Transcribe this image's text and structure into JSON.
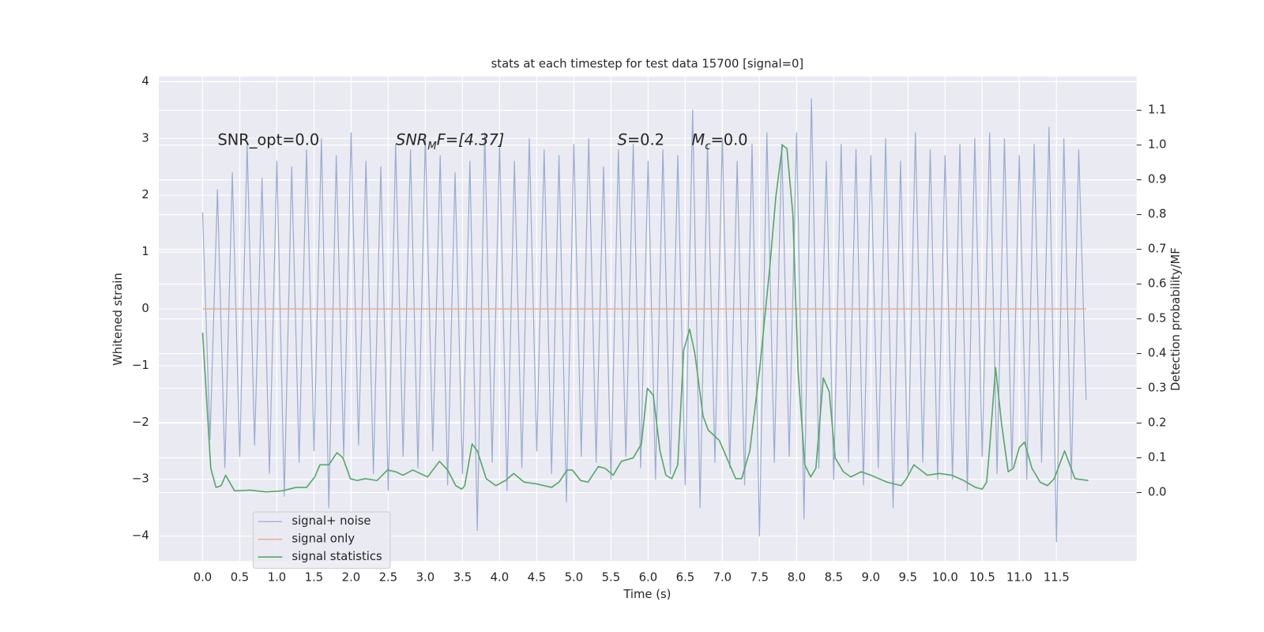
{
  "chart_data": {
    "type": "line",
    "title": "stats at each timestep for test data 15700 [signal=0]",
    "x_label": "Time (s)",
    "y_label": "Whitened strain",
    "y2_label": "Detection probability/MF",
    "grid": true,
    "legend_position": "lower left",
    "xlim": [
      -0.59,
      12.58
    ],
    "ylim": [
      -4.44,
      4.09
    ],
    "y2lim": [
      -0.197,
      1.197
    ],
    "xticks": [
      {
        "value": 0,
        "label": "0.0"
      },
      0.5,
      {
        "value": 1,
        "label": "1.0"
      },
      1.5,
      {
        "value": 2,
        "label": "2.0"
      },
      2.5,
      {
        "value": 3,
        "label": "3.0"
      },
      3.5,
      {
        "value": 4,
        "label": "4.0"
      },
      4.5,
      {
        "value": 5,
        "label": "5.0"
      },
      5.5,
      {
        "value": 6,
        "label": "6.0"
      },
      6.5,
      {
        "value": 7,
        "label": "7.0"
      },
      7.5,
      {
        "value": 8,
        "label": "8.0"
      },
      8.5,
      {
        "value": 9,
        "label": "9.0"
      },
      9.5,
      {
        "value": 10,
        "label": "10.0"
      },
      10.5,
      {
        "value": 11,
        "label": "11.0"
      },
      11.5
    ],
    "yticks": [
      {
        "value": -4,
        "label": "−4"
      },
      {
        "value": -3,
        "label": "−3"
      },
      {
        "value": -2,
        "label": "−2"
      },
      {
        "value": -1,
        "label": "−1"
      },
      0,
      1,
      2,
      3,
      4
    ],
    "y2ticks": [
      {
        "value": 0,
        "label": "0.0"
      },
      0.1,
      0.2,
      0.3,
      0.4,
      0.5,
      0.6,
      0.7,
      0.8,
      0.9,
      {
        "value": 1,
        "label": "1.0"
      },
      1.1
    ],
    "annotations": [
      {
        "text": "SNR_opt=0.0"
      },
      {
        "text": "SNR",
        "sub": "M",
        "after": "F=[4.37]"
      },
      {
        "text": "S",
        "after": "=0.2"
      },
      {
        "text": "M",
        "sub": "c",
        "after": "=0.0"
      }
    ],
    "series": [
      {
        "name": "signal+ noise",
        "color": "#9aacd2",
        "width": 1.2,
        "axis": "y",
        "x": [
          0.0,
          0.1,
          0.2,
          0.3,
          0.4,
          0.5,
          0.6,
          0.7,
          0.8,
          0.9,
          1.0,
          1.1,
          1.2,
          1.3,
          1.4,
          1.5,
          1.6,
          1.7,
          1.8,
          1.9,
          2.0,
          2.1,
          2.2,
          2.3,
          2.4,
          2.5,
          2.6,
          2.7,
          2.8,
          2.9,
          3.0,
          3.1,
          3.2,
          3.3,
          3.4,
          3.5,
          3.6,
          3.7,
          3.8,
          3.9,
          4.0,
          4.1,
          4.2,
          4.3,
          4.4,
          4.5,
          4.6,
          4.7,
          4.8,
          4.9,
          5.0,
          5.1,
          5.2,
          5.3,
          5.4,
          5.5,
          5.6,
          5.7,
          5.8,
          5.9,
          6.0,
          6.1,
          6.2,
          6.3,
          6.4,
          6.5,
          6.6,
          6.7,
          6.8,
          6.9,
          7.0,
          7.1,
          7.2,
          7.3,
          7.4,
          7.5,
          7.6,
          7.7,
          7.8,
          7.9,
          8.0,
          8.1,
          8.2,
          8.3,
          8.4,
          8.5,
          8.6,
          8.7,
          8.8,
          8.9,
          9.0,
          9.1,
          9.2,
          9.3,
          9.4,
          9.5,
          9.6,
          9.7,
          9.8,
          9.9,
          10.0,
          10.1,
          10.2,
          10.3,
          10.4,
          10.5,
          10.6,
          10.7,
          10.8,
          10.9,
          11.0,
          11.1,
          11.2,
          11.3,
          11.4,
          11.5,
          11.6,
          11.7,
          11.8,
          11.9
        ],
        "values": [
          1.7,
          -2.3,
          2.1,
          -2.8,
          2.4,
          -2.6,
          2.9,
          -2.4,
          2.3,
          -2.9,
          2.6,
          -3.3,
          2.5,
          -2.7,
          2.8,
          -2.5,
          3.0,
          -3.5,
          2.7,
          -2.6,
          3.1,
          -2.4,
          2.6,
          -2.9,
          2.5,
          -3.2,
          2.9,
          -2.6,
          2.8,
          -2.8,
          3.0,
          -2.5,
          2.7,
          -3.1,
          2.4,
          -2.9,
          2.6,
          -3.9,
          3.1,
          -2.7,
          2.9,
          -3.2,
          2.6,
          -2.8,
          3.0,
          -2.5,
          2.8,
          -2.9,
          2.7,
          -3.4,
          2.9,
          -2.6,
          3.0,
          -2.7,
          2.5,
          -3.0,
          2.8,
          -2.6,
          2.9,
          -2.8,
          2.6,
          -3.0,
          2.8,
          -2.9,
          2.7,
          -3.1,
          3.5,
          -3.5,
          2.9,
          -2.7,
          3.0,
          -2.8,
          2.6,
          -3.1,
          2.9,
          -4.0,
          3.1,
          -2.7,
          2.9,
          -2.6,
          3.1,
          -3.7,
          3.7,
          -2.8,
          2.6,
          -3.0,
          2.9,
          -2.7,
          2.8,
          -3.1,
          2.7,
          -2.8,
          3.0,
          -3.5,
          2.6,
          -2.9,
          3.1,
          -2.7,
          2.8,
          -3.0,
          2.7,
          -3.0,
          2.9,
          -3.2,
          3.0,
          -2.6,
          3.1,
          -2.9,
          3.0,
          -2.8,
          2.7,
          -3.0,
          2.9,
          -2.7,
          3.2,
          -4.1,
          3.0,
          -3.0,
          2.8,
          -1.6
        ]
      },
      {
        "name": "signal only",
        "color": "#e8ad90",
        "width": 1.5,
        "axis": "y",
        "x": [
          0.0,
          11.9
        ],
        "values": [
          0,
          0
        ]
      },
      {
        "name": "signal statistics",
        "color": "#55a868",
        "width": 1.6,
        "axis": "y2",
        "x": [
          0.0,
          0.11,
          0.18,
          0.25,
          0.31,
          0.43,
          0.64,
          0.86,
          1.07,
          1.26,
          1.4,
          1.51,
          1.58,
          1.7,
          1.81,
          1.89,
          1.99,
          2.08,
          2.19,
          2.35,
          2.49,
          2.6,
          2.7,
          2.83,
          3.03,
          3.19,
          3.3,
          3.41,
          3.49,
          3.53,
          3.63,
          3.7,
          3.82,
          3.95,
          4.08,
          4.19,
          4.33,
          4.5,
          4.7,
          4.8,
          4.91,
          4.98,
          5.09,
          5.19,
          5.33,
          5.42,
          5.53,
          5.64,
          5.8,
          5.91,
          5.99,
          6.07,
          6.16,
          6.24,
          6.32,
          6.4,
          6.48,
          6.56,
          6.63,
          6.74,
          6.81,
          6.96,
          7.1,
          7.18,
          7.26,
          7.37,
          7.5,
          7.64,
          7.72,
          7.81,
          7.87,
          7.95,
          8.02,
          8.11,
          8.19,
          8.26,
          8.36,
          8.44,
          8.52,
          8.63,
          8.73,
          8.87,
          9.0,
          9.22,
          9.41,
          9.48,
          9.58,
          9.7,
          9.76,
          9.92,
          10.09,
          10.25,
          10.41,
          10.5,
          10.56,
          10.6,
          10.68,
          10.76,
          10.85,
          10.92,
          11.0,
          11.07,
          11.17,
          11.28,
          11.38,
          11.47,
          11.61,
          11.75,
          11.93
        ],
        "values": [
          0.46,
          0.07,
          0.015,
          0.02,
          0.05,
          0.005,
          0.007,
          0.002,
          0.005,
          0.015,
          0.015,
          0.045,
          0.08,
          0.08,
          0.115,
          0.1,
          0.04,
          0.035,
          0.04,
          0.035,
          0.065,
          0.06,
          0.05,
          0.065,
          0.045,
          0.09,
          0.065,
          0.02,
          0.01,
          0.02,
          0.14,
          0.12,
          0.04,
          0.02,
          0.035,
          0.055,
          0.03,
          0.025,
          0.015,
          0.03,
          0.065,
          0.065,
          0.035,
          0.03,
          0.075,
          0.07,
          0.05,
          0.09,
          0.1,
          0.14,
          0.3,
          0.28,
          0.12,
          0.05,
          0.04,
          0.08,
          0.41,
          0.47,
          0.4,
          0.22,
          0.18,
          0.15,
          0.08,
          0.04,
          0.04,
          0.12,
          0.35,
          0.65,
          0.85,
          1.0,
          0.99,
          0.8,
          0.35,
          0.08,
          0.045,
          0.07,
          0.33,
          0.29,
          0.1,
          0.06,
          0.045,
          0.06,
          0.05,
          0.03,
          0.02,
          0.04,
          0.08,
          0.06,
          0.05,
          0.055,
          0.05,
          0.035,
          0.015,
          0.01,
          0.03,
          0.13,
          0.36,
          0.2,
          0.06,
          0.07,
          0.13,
          0.145,
          0.07,
          0.03,
          0.02,
          0.04,
          0.12,
          0.04,
          0.035
        ]
      }
    ]
  }
}
